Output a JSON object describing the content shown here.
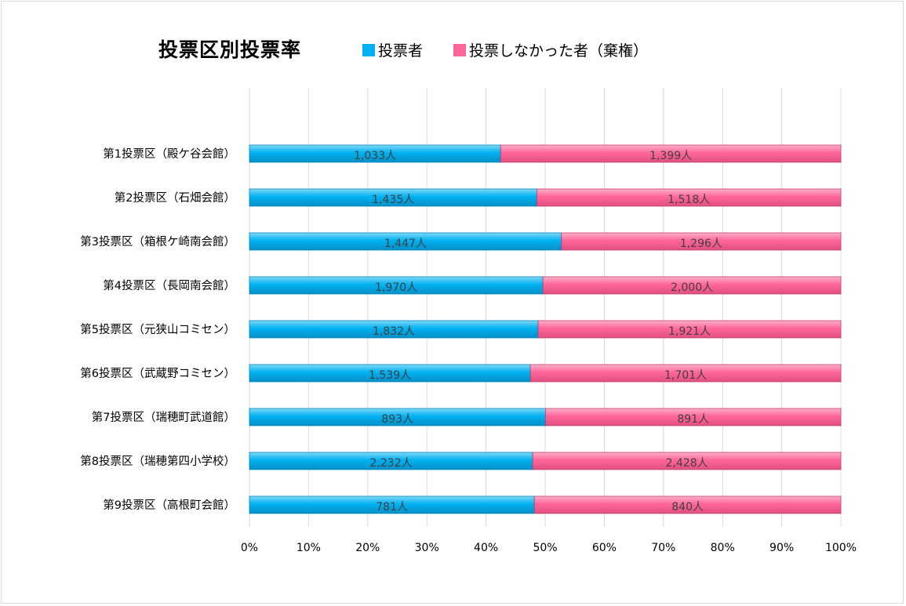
{
  "chart_data": {
    "type": "bar",
    "orientation": "horizontal",
    "stacked": "percent",
    "title": "投票区別投票率",
    "categories": [
      "第1投票区（殿ケ谷会館）",
      "第2投票区（石畑会館）",
      "第3投票区（箱根ケ崎南会館）",
      "第4投票区（長岡南会館）",
      "第5投票区（元狭山コミセン）",
      "第6投票区（武蔵野コミセン）",
      "第7投票区（瑞穂町武道館）",
      "第8投票区（瑞穂第四小学校）",
      "第9投票区（高根町会館）"
    ],
    "series": [
      {
        "name": "投票者",
        "color": "#00b0f0",
        "values": [
          1033,
          1435,
          1447,
          1970,
          1832,
          1539,
          893,
          2232,
          781
        ],
        "labels": [
          "1,033人",
          "1,435人",
          "1,447人",
          "1,970人",
          "1,832人",
          "1,539人",
          "893人",
          "2,232人",
          "781人"
        ]
      },
      {
        "name": "投票しなかった者（棄権）",
        "color": "#ff6699",
        "values": [
          1399,
          1518,
          1296,
          2000,
          1921,
          1701,
          891,
          2428,
          840
        ],
        "labels": [
          "1,399人",
          "1,518人",
          "1,296人",
          "2,000人",
          "1,921人",
          "1,701人",
          "891人",
          "2,428人",
          "840人"
        ]
      }
    ],
    "xlim": [
      0,
      100
    ],
    "xticks": [
      "0%",
      "10%",
      "20%",
      "30%",
      "40%",
      "50%",
      "60%",
      "70%",
      "80%",
      "90%",
      "100%"
    ],
    "grid": true,
    "legend_position": "top"
  }
}
